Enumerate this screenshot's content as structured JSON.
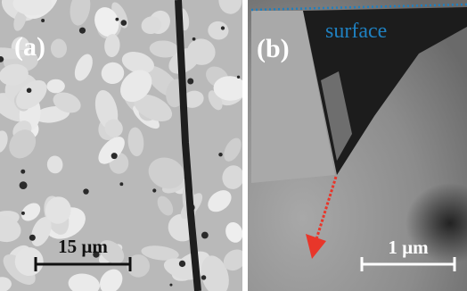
{
  "panels": [
    {
      "label": "(a)",
      "scale_bar": "15 µm"
    },
    {
      "label": "(b)",
      "annotation": "surface",
      "scale_bar": "1 µm"
    }
  ]
}
